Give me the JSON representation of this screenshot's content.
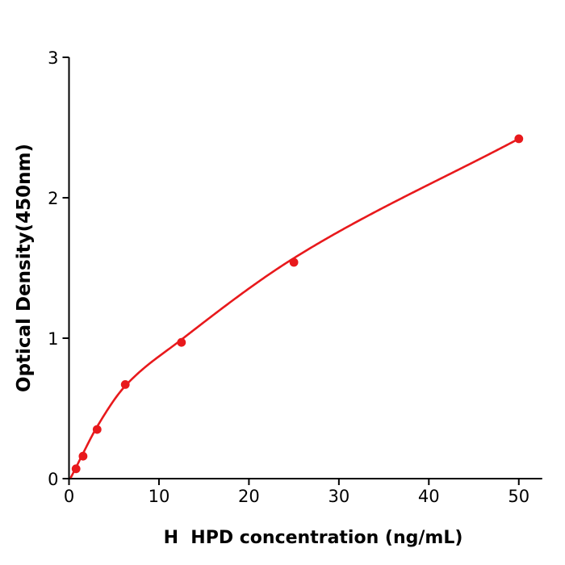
{
  "chart_data": {
    "type": "scatter",
    "title": "",
    "xlabel": "H  HPD concentration (ng/mL)",
    "ylabel": "Optical Density(450nm)",
    "series": [
      {
        "name": "standard-curve-points",
        "x": [
          0.78,
          1.56,
          3.125,
          6.25,
          12.5,
          25,
          50
        ],
        "y": [
          0.07,
          0.16,
          0.35,
          0.67,
          0.97,
          1.54,
          2.42
        ],
        "marker": "circle",
        "color": "#e8191c"
      }
    ],
    "fit_curve": {
      "description": "smooth saturating fit through the data points, drawn from near the origin to the last point",
      "color": "#e8191c",
      "anchors_x": [
        0.22,
        0.78,
        1.56,
        3.125,
        6.25,
        12.5,
        25,
        50
      ],
      "anchors_y": [
        0.01,
        0.08,
        0.18,
        0.37,
        0.66,
        0.99,
        1.57,
        2.42
      ]
    },
    "xlim": [
      0,
      52.6
    ],
    "ylim": [
      0,
      3
    ],
    "x_ticks": [
      "0",
      "10",
      "20",
      "30",
      "40",
      "50"
    ],
    "y_ticks": [
      "0",
      "1",
      "2",
      "3"
    ],
    "grid": false,
    "legend": "none",
    "axis_color": "#000000",
    "background": "#ffffff"
  }
}
